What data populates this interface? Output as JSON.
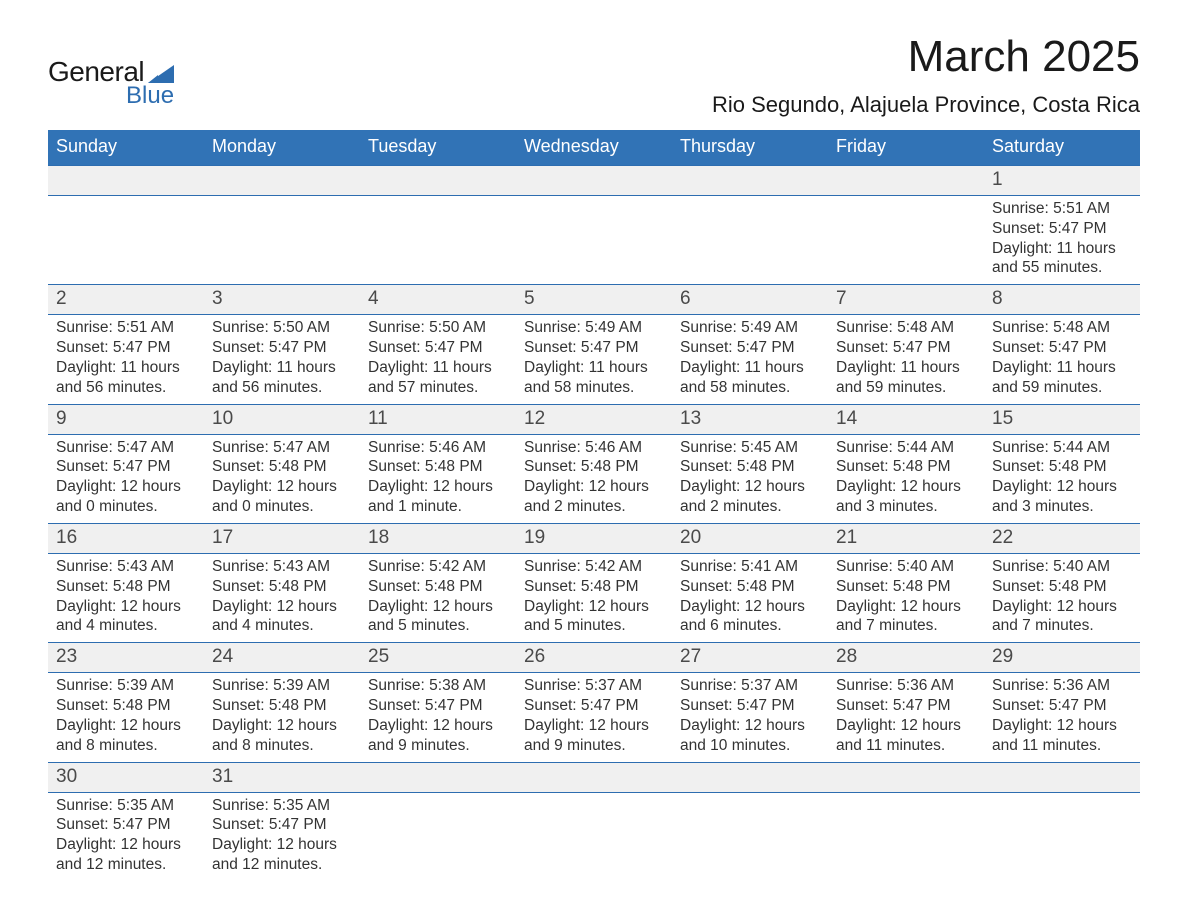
{
  "logo": {
    "text1": "General",
    "text2": "Blue"
  },
  "title": "March 2025",
  "subtitle": "Rio Segundo, Alajuela Province, Costa Rica",
  "colors": {
    "header_bg": "#3173b6",
    "header_fg": "#ffffff",
    "daynum_bg": "#f0f0f0",
    "daynum_fg": "#4a4a4a",
    "detail_fg": "#333333",
    "row_border": "#2d6db0",
    "logo_accent": "#2d6db0"
  },
  "dayHeaders": [
    "Sunday",
    "Monday",
    "Tuesday",
    "Wednesday",
    "Thursday",
    "Friday",
    "Saturday"
  ],
  "weeks": [
    [
      null,
      null,
      null,
      null,
      null,
      null,
      {
        "n": "1",
        "sr": "Sunrise: 5:51 AM",
        "ss": "Sunset: 5:47 PM",
        "dl": "Daylight: 11 hours and 55 minutes."
      }
    ],
    [
      {
        "n": "2",
        "sr": "Sunrise: 5:51 AM",
        "ss": "Sunset: 5:47 PM",
        "dl": "Daylight: 11 hours and 56 minutes."
      },
      {
        "n": "3",
        "sr": "Sunrise: 5:50 AM",
        "ss": "Sunset: 5:47 PM",
        "dl": "Daylight: 11 hours and 56 minutes."
      },
      {
        "n": "4",
        "sr": "Sunrise: 5:50 AM",
        "ss": "Sunset: 5:47 PM",
        "dl": "Daylight: 11 hours and 57 minutes."
      },
      {
        "n": "5",
        "sr": "Sunrise: 5:49 AM",
        "ss": "Sunset: 5:47 PM",
        "dl": "Daylight: 11 hours and 58 minutes."
      },
      {
        "n": "6",
        "sr": "Sunrise: 5:49 AM",
        "ss": "Sunset: 5:47 PM",
        "dl": "Daylight: 11 hours and 58 minutes."
      },
      {
        "n": "7",
        "sr": "Sunrise: 5:48 AM",
        "ss": "Sunset: 5:47 PM",
        "dl": "Daylight: 11 hours and 59 minutes."
      },
      {
        "n": "8",
        "sr": "Sunrise: 5:48 AM",
        "ss": "Sunset: 5:47 PM",
        "dl": "Daylight: 11 hours and 59 minutes."
      }
    ],
    [
      {
        "n": "9",
        "sr": "Sunrise: 5:47 AM",
        "ss": "Sunset: 5:47 PM",
        "dl": "Daylight: 12 hours and 0 minutes."
      },
      {
        "n": "10",
        "sr": "Sunrise: 5:47 AM",
        "ss": "Sunset: 5:48 PM",
        "dl": "Daylight: 12 hours and 0 minutes."
      },
      {
        "n": "11",
        "sr": "Sunrise: 5:46 AM",
        "ss": "Sunset: 5:48 PM",
        "dl": "Daylight: 12 hours and 1 minute."
      },
      {
        "n": "12",
        "sr": "Sunrise: 5:46 AM",
        "ss": "Sunset: 5:48 PM",
        "dl": "Daylight: 12 hours and 2 minutes."
      },
      {
        "n": "13",
        "sr": "Sunrise: 5:45 AM",
        "ss": "Sunset: 5:48 PM",
        "dl": "Daylight: 12 hours and 2 minutes."
      },
      {
        "n": "14",
        "sr": "Sunrise: 5:44 AM",
        "ss": "Sunset: 5:48 PM",
        "dl": "Daylight: 12 hours and 3 minutes."
      },
      {
        "n": "15",
        "sr": "Sunrise: 5:44 AM",
        "ss": "Sunset: 5:48 PM",
        "dl": "Daylight: 12 hours and 3 minutes."
      }
    ],
    [
      {
        "n": "16",
        "sr": "Sunrise: 5:43 AM",
        "ss": "Sunset: 5:48 PM",
        "dl": "Daylight: 12 hours and 4 minutes."
      },
      {
        "n": "17",
        "sr": "Sunrise: 5:43 AM",
        "ss": "Sunset: 5:48 PM",
        "dl": "Daylight: 12 hours and 4 minutes."
      },
      {
        "n": "18",
        "sr": "Sunrise: 5:42 AM",
        "ss": "Sunset: 5:48 PM",
        "dl": "Daylight: 12 hours and 5 minutes."
      },
      {
        "n": "19",
        "sr": "Sunrise: 5:42 AM",
        "ss": "Sunset: 5:48 PM",
        "dl": "Daylight: 12 hours and 5 minutes."
      },
      {
        "n": "20",
        "sr": "Sunrise: 5:41 AM",
        "ss": "Sunset: 5:48 PM",
        "dl": "Daylight: 12 hours and 6 minutes."
      },
      {
        "n": "21",
        "sr": "Sunrise: 5:40 AM",
        "ss": "Sunset: 5:48 PM",
        "dl": "Daylight: 12 hours and 7 minutes."
      },
      {
        "n": "22",
        "sr": "Sunrise: 5:40 AM",
        "ss": "Sunset: 5:48 PM",
        "dl": "Daylight: 12 hours and 7 minutes."
      }
    ],
    [
      {
        "n": "23",
        "sr": "Sunrise: 5:39 AM",
        "ss": "Sunset: 5:48 PM",
        "dl": "Daylight: 12 hours and 8 minutes."
      },
      {
        "n": "24",
        "sr": "Sunrise: 5:39 AM",
        "ss": "Sunset: 5:48 PM",
        "dl": "Daylight: 12 hours and 8 minutes."
      },
      {
        "n": "25",
        "sr": "Sunrise: 5:38 AM",
        "ss": "Sunset: 5:47 PM",
        "dl": "Daylight: 12 hours and 9 minutes."
      },
      {
        "n": "26",
        "sr": "Sunrise: 5:37 AM",
        "ss": "Sunset: 5:47 PM",
        "dl": "Daylight: 12 hours and 9 minutes."
      },
      {
        "n": "27",
        "sr": "Sunrise: 5:37 AM",
        "ss": "Sunset: 5:47 PM",
        "dl": "Daylight: 12 hours and 10 minutes."
      },
      {
        "n": "28",
        "sr": "Sunrise: 5:36 AM",
        "ss": "Sunset: 5:47 PM",
        "dl": "Daylight: 12 hours and 11 minutes."
      },
      {
        "n": "29",
        "sr": "Sunrise: 5:36 AM",
        "ss": "Sunset: 5:47 PM",
        "dl": "Daylight: 12 hours and 11 minutes."
      }
    ],
    [
      {
        "n": "30",
        "sr": "Sunrise: 5:35 AM",
        "ss": "Sunset: 5:47 PM",
        "dl": "Daylight: 12 hours and 12 minutes."
      },
      {
        "n": "31",
        "sr": "Sunrise: 5:35 AM",
        "ss": "Sunset: 5:47 PM",
        "dl": "Daylight: 12 hours and 12 minutes."
      },
      null,
      null,
      null,
      null,
      null
    ]
  ]
}
